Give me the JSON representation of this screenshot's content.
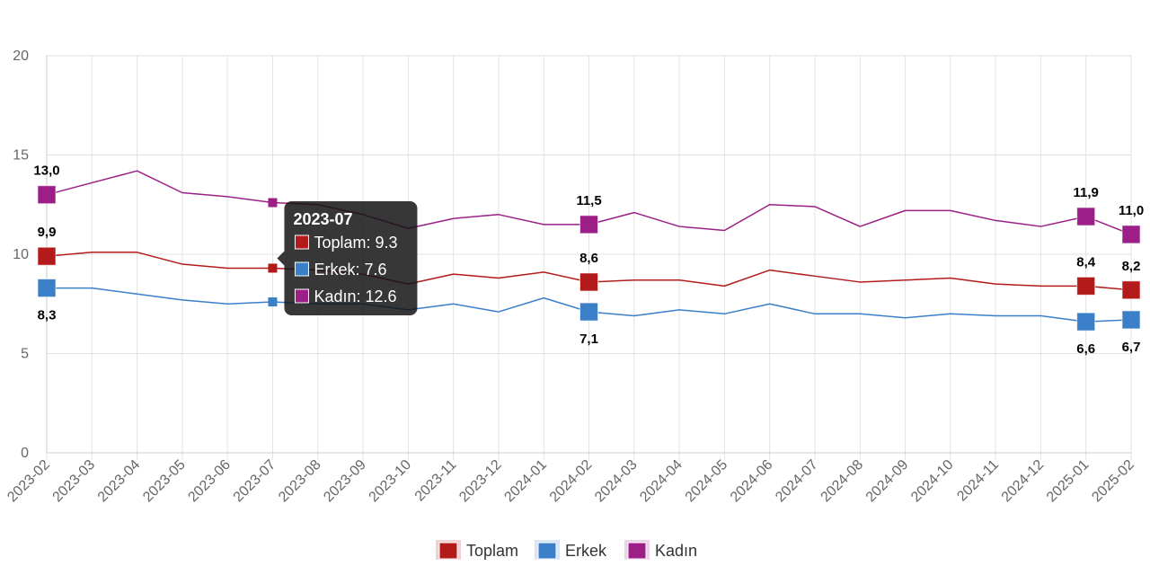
{
  "chart_data": {
    "type": "line",
    "categories": [
      "2023-02",
      "2023-03",
      "2023-04",
      "2023-05",
      "2023-06",
      "2023-07",
      "2023-08",
      "2023-09",
      "2023-10",
      "2023-11",
      "2023-12",
      "2024-01",
      "2024-02",
      "2024-03",
      "2024-04",
      "2024-05",
      "2024-06",
      "2024-07",
      "2024-08",
      "2024-09",
      "2024-10",
      "2024-11",
      "2024-12",
      "2025-01",
      "2025-02"
    ],
    "ylim": [
      0,
      20
    ],
    "yticks": [
      0,
      5,
      10,
      15,
      20
    ],
    "grid": true,
    "legend_position": "bottom",
    "series": [
      {
        "name": "Toplam",
        "color": "#b31b1b",
        "values": [
          9.9,
          10.1,
          10.1,
          9.5,
          9.3,
          9.3,
          9.2,
          9.0,
          8.5,
          9.0,
          8.8,
          9.1,
          8.6,
          8.7,
          8.7,
          8.4,
          9.2,
          8.9,
          8.6,
          8.7,
          8.8,
          8.5,
          8.4,
          8.4,
          8.2
        ]
      },
      {
        "name": "Erkek",
        "color": "#3a7fc8",
        "values": [
          8.3,
          8.3,
          8.0,
          7.7,
          7.5,
          7.6,
          7.5,
          7.5,
          7.2,
          7.5,
          7.1,
          7.8,
          7.1,
          6.9,
          7.2,
          7.0,
          7.5,
          7.0,
          7.0,
          6.8,
          7.0,
          6.9,
          6.9,
          6.6,
          6.7
        ]
      },
      {
        "name": "Kadın",
        "color": "#9b1f86",
        "values": [
          13.0,
          13.6,
          14.2,
          13.1,
          12.9,
          12.6,
          12.5,
          12.0,
          11.3,
          11.8,
          12.0,
          11.5,
          11.5,
          12.1,
          11.4,
          11.2,
          12.5,
          12.4,
          11.4,
          12.2,
          12.2,
          11.7,
          11.4,
          11.9,
          11.0
        ]
      }
    ],
    "data_labels": [
      {
        "series": "Kadın",
        "index": 0,
        "text": "13,0",
        "pos": "above"
      },
      {
        "series": "Toplam",
        "index": 0,
        "text": "9,9",
        "pos": "above"
      },
      {
        "series": "Erkek",
        "index": 0,
        "text": "8,3",
        "pos": "below"
      },
      {
        "series": "Kadın",
        "index": 12,
        "text": "11,5",
        "pos": "above"
      },
      {
        "series": "Toplam",
        "index": 12,
        "text": "8,6",
        "pos": "above"
      },
      {
        "series": "Erkek",
        "index": 12,
        "text": "7,1",
        "pos": "below"
      },
      {
        "series": "Kadın",
        "index": 23,
        "text": "11,9",
        "pos": "above"
      },
      {
        "series": "Toplam",
        "index": 23,
        "text": "8,4",
        "pos": "above"
      },
      {
        "series": "Erkek",
        "index": 23,
        "text": "6,6",
        "pos": "below"
      },
      {
        "series": "Kadın",
        "index": 24,
        "text": "11,0",
        "pos": "above"
      },
      {
        "series": "Toplam",
        "index": 24,
        "text": "8,2",
        "pos": "above"
      },
      {
        "series": "Erkek",
        "index": 24,
        "text": "6,7",
        "pos": "below"
      }
    ],
    "tooltip": {
      "title": "2023-07",
      "index": 5,
      "lines": [
        "Toplam: 9.3",
        "Erkek: 7.6",
        "Kadın: 12.6"
      ]
    }
  }
}
